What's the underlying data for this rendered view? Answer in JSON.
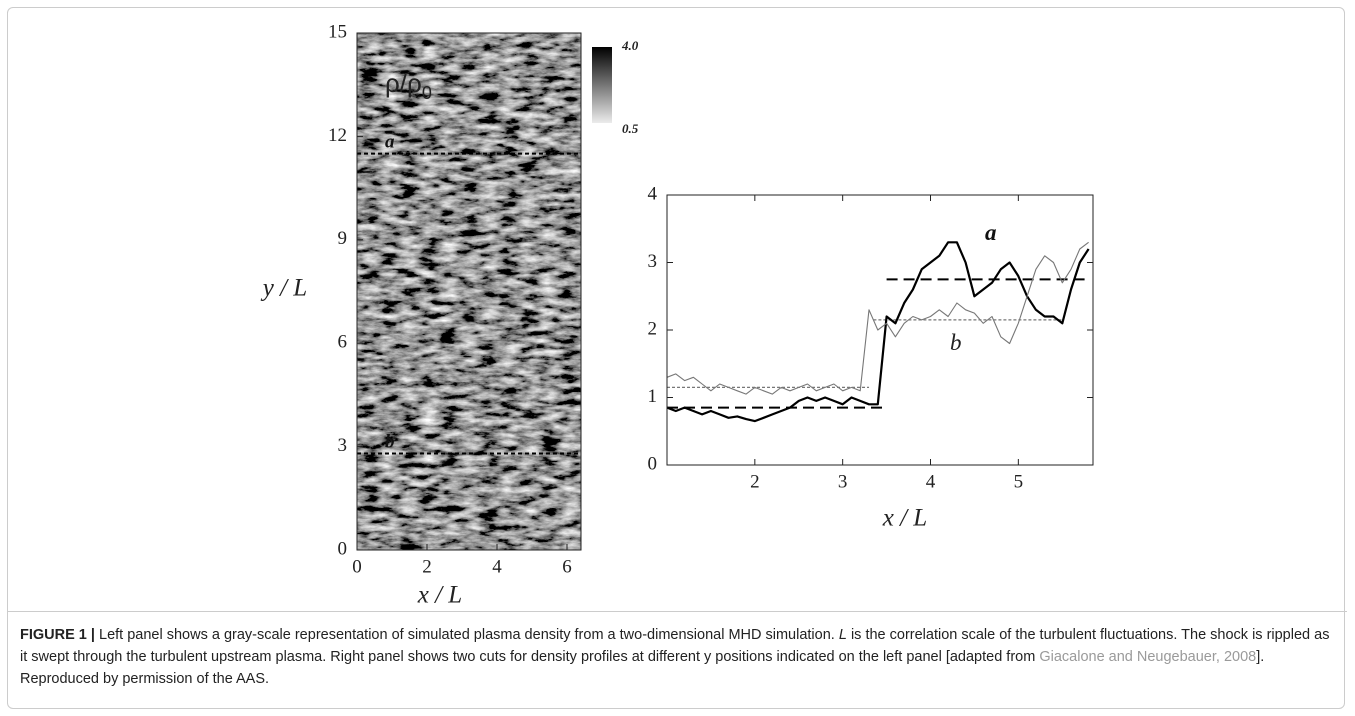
{
  "chart_data": [
    {
      "type": "image",
      "xlabel": "x / L",
      "ylabel": "y / L",
      "xlim": [
        0,
        6.4
      ],
      "ylim": [
        0,
        15
      ],
      "xticks": [
        0,
        2,
        4,
        6
      ],
      "yticks": [
        0,
        3,
        6,
        9,
        12,
        15
      ],
      "colormap": "gray",
      "colorbar": {
        "lim": [
          0.5,
          4.0
        ],
        "ticks": [
          {
            "value": 4,
            "label": "4.0"
          },
          {
            "value": 0.5,
            "label": "0.5"
          }
        ]
      },
      "quantity": {
        "text": "ρ/ρ",
        "subscript": "0"
      },
      "cuts": [
        {
          "label": "a",
          "y": 11.5
        },
        {
          "label": "b",
          "y": 2.8
        }
      ]
    },
    {
      "type": "line",
      "xlabel": "x / L",
      "xlim": [
        1.0,
        5.85
      ],
      "ylim": [
        0,
        4
      ],
      "xticks": [
        2,
        3,
        4,
        5
      ],
      "yticks": [
        0,
        1,
        2,
        3,
        4
      ],
      "x": [
        1.0,
        1.1,
        1.2,
        1.3,
        1.4,
        1.5,
        1.6,
        1.7,
        1.8,
        1.9,
        2.0,
        2.1,
        2.2,
        2.3,
        2.4,
        2.5,
        2.6,
        2.7,
        2.8,
        2.9,
        3.0,
        3.1,
        3.2,
        3.3,
        3.4,
        3.5,
        3.6,
        3.7,
        3.8,
        3.9,
        4.0,
        4.1,
        4.2,
        4.3,
        4.4,
        4.5,
        4.6,
        4.7,
        4.8,
        4.9,
        5.0,
        5.1,
        5.2,
        5.3,
        5.4,
        5.5,
        5.6,
        5.7,
        5.8
      ],
      "series": [
        {
          "name": "a",
          "color": "#000000",
          "values": [
            0.85,
            0.8,
            0.85,
            0.8,
            0.75,
            0.8,
            0.75,
            0.7,
            0.72,
            0.68,
            0.65,
            0.7,
            0.75,
            0.8,
            0.85,
            0.95,
            1.0,
            0.95,
            1.0,
            0.95,
            0.9,
            1.0,
            0.95,
            0.9,
            0.9,
            2.2,
            2.1,
            2.4,
            2.6,
            2.9,
            3.0,
            3.1,
            3.3,
            3.3,
            3.0,
            2.5,
            2.6,
            2.7,
            2.9,
            3.0,
            2.8,
            2.5,
            2.3,
            2.2,
            2.2,
            2.1,
            2.6,
            3.0,
            3.2
          ],
          "mean_segments": [
            {
              "x": [
                1.0,
                3.45
              ],
              "y": 0.85
            },
            {
              "x": [
                3.5,
                5.8
              ],
              "y": 2.75
            }
          ]
        },
        {
          "name": "b",
          "color": "#777777",
          "values": [
            1.3,
            1.35,
            1.25,
            1.3,
            1.2,
            1.1,
            1.2,
            1.15,
            1.1,
            1.05,
            1.15,
            1.1,
            1.05,
            1.15,
            1.1,
            1.15,
            1.2,
            1.1,
            1.15,
            1.2,
            1.1,
            1.15,
            1.1,
            2.3,
            2.0,
            2.1,
            1.9,
            2.1,
            2.2,
            2.15,
            2.2,
            2.3,
            2.2,
            2.4,
            2.3,
            2.25,
            2.1,
            2.2,
            1.9,
            1.8,
            2.1,
            2.5,
            2.9,
            3.1,
            3.0,
            2.7,
            2.9,
            3.2,
            3.3
          ],
          "mean_segments": [
            {
              "x": [
                1.0,
                3.3
              ],
              "y": 1.15
            },
            {
              "x": [
                3.35,
                5.5
              ],
              "y": 2.15
            }
          ]
        }
      ]
    }
  ],
  "caption": {
    "label": "FIGURE 1 |",
    "parts": [
      {
        "text": "Left panel shows a gray-scale representation of simulated plasma density from a two-dimensional MHD simulation. "
      },
      {
        "text": "L",
        "italic": true
      },
      {
        "text": " is the correlation scale of the turbulent fluctuations. The shock is rippled as it swept through the turbulent upstream plasma. Right panel shows two cuts for density profiles at different y positions indicated on the left panel [adapted from "
      },
      {
        "text": "Giacalone and Neugebauer, 2008",
        "link": true
      },
      {
        "text": "]. Reproduced by permission of the AAS."
      }
    ]
  }
}
